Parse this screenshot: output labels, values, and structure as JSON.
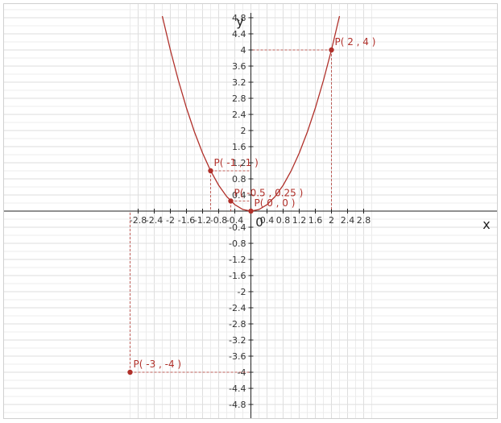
{
  "chart_data": {
    "type": "line",
    "title": "",
    "xlabel": "x",
    "ylabel": "y",
    "origin_label": "0",
    "xlim": [
      -3,
      2.9
    ],
    "ylim": [
      -5,
      4.8
    ],
    "x_ticks": [
      -2.8,
      -2.4,
      -2,
      -1.6,
      -1.2,
      -0.8,
      -0.4,
      0.4,
      0.8,
      1.2,
      1.6,
      2,
      2.4,
      2.8
    ],
    "x_tick_labels": [
      "-2.8",
      "-2.4",
      "-2",
      "-1.6",
      "-1.2",
      "-0.8",
      "-0.4",
      "0.4",
      "0.8",
      "1.2",
      "1.6",
      "2",
      "2.4",
      "2.8"
    ],
    "y_ticks": [
      4.8,
      4.4,
      4,
      3.6,
      3.2,
      2.8,
      2.4,
      2,
      1.6,
      1.2,
      0.8,
      0.4,
      -0.4,
      -0.8,
      -1.2,
      -1.6,
      -2,
      -2.4,
      -2.8,
      -3.2,
      -3.6,
      -4,
      -4.4,
      -4.8
    ],
    "y_tick_labels": [
      "4.8",
      "4.4",
      "4",
      "3.6",
      "3.2",
      "2.8",
      "2.4",
      "2",
      "1.6",
      "1.2",
      "0.8",
      "0.4",
      "-0.4",
      "-0.8",
      "-1.2",
      "-1.6",
      "-2",
      "-2.4",
      "-2.8",
      "-3.2",
      "-3.6",
      "-4",
      "-4.4",
      "-4.8"
    ],
    "grid": true,
    "curve": {
      "x": [
        -2.2,
        -2.0,
        -1.8,
        -1.6,
        -1.4,
        -1.2,
        -1.0,
        -0.8,
        -0.6,
        -0.4,
        -0.2,
        0.0,
        0.2,
        0.4,
        0.6,
        0.8,
        1.0,
        1.2,
        1.4,
        1.6,
        1.8,
        2.0,
        2.2
      ],
      "y": [
        4.84,
        4.0,
        3.24,
        2.56,
        1.96,
        1.44,
        1.0,
        0.64,
        0.36,
        0.16,
        0.04,
        0.0,
        0.04,
        0.16,
        0.36,
        0.64,
        1.0,
        1.44,
        1.96,
        2.56,
        3.24,
        4.0,
        4.84
      ],
      "color": "#b0302a"
    },
    "points": [
      {
        "x": 2,
        "y": 4,
        "label": "P( 2 , 4 )"
      },
      {
        "x": -1,
        "y": 1,
        "label": "P( -1 , 1 )"
      },
      {
        "x": -0.5,
        "y": 0.25,
        "label": "P( -0.5 , 0.25 )"
      },
      {
        "x": 0,
        "y": 0,
        "label": "P( 0 , 0 )"
      },
      {
        "x": -3,
        "y": -4,
        "label": "P( -3 , -4 )"
      }
    ],
    "point_color": "#b0302a"
  }
}
